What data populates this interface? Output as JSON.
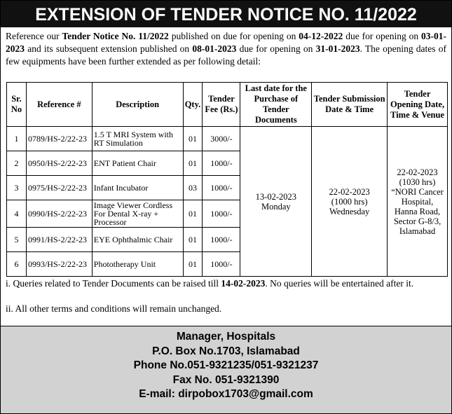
{
  "header": {
    "title": "EXTENSION OF TENDER NOTICE NO. 11/2022"
  },
  "intro": [
    "Reference our ",
    "Tender Notice No. 11/2022",
    " published on due for opening on ",
    "04-12-2022",
    " due for opening on ",
    "03-01-2023",
    " and its subsequent extension published on ",
    "08-01-2023",
    " due for opening on ",
    "31-01-2023",
    ". The opening dates of few equipments have been further extended as per following detail:"
  ],
  "table": {
    "headers": [
      "Sr. No",
      "Reference #",
      "Description",
      "Qty.",
      "Tender Fee (Rs.)",
      "Last date for the Purchase of Tender Documents",
      "Tender Submission Date & Time",
      "Tender Opening Date, Time & Venue"
    ],
    "rows": [
      [
        "1",
        "0789/HS-2/22-23",
        "1.5 T MRI System with RT Simulation",
        "01",
        "3000/-"
      ],
      [
        "2",
        "0950/HS-2/22-23",
        "ENT Patient Chair",
        "01",
        "1000/-"
      ],
      [
        "3",
        "0975/HS-2/22-23",
        "Infant Incubator",
        "03",
        "1000/-"
      ],
      [
        "4",
        "0990/HS-2/22-23",
        "Image Viewer Cordless For Dental X-ray + Processor",
        "01",
        "1000/-"
      ],
      [
        "5",
        "0991/HS-2/22-23",
        "EYE Ophthalmic Chair",
        "01",
        "1000/-"
      ],
      [
        "6",
        "0993/HS-2/22-23",
        "Phototherapy Unit",
        "01",
        "1000/-"
      ]
    ],
    "last_date": [
      "13-02-2023",
      "Monday"
    ],
    "submission": [
      "22-02-2023",
      "(1000 hrs)",
      "Wednesday"
    ],
    "opening": [
      "22-02-2023",
      "(1030 hrs)",
      "“NORI Cancer Hospital, Hanna Road, Sector G-8/3, Islamabad"
    ]
  },
  "notes": [
    [
      "i. Queries related to Tender Documents can be raised till ",
      "14-02-2023",
      ". No queries will be entertained after it."
    ],
    [
      "ii. All other terms and conditions will remain unchanged."
    ]
  ],
  "footer": [
    "Manager, Hospitals",
    "P.O. Box No.1703, Islamabad",
    "Phone No.051-9321235/051-9321237",
    "Fax No. 051-9321390",
    "E-mail: dirpobox1703@gmail.com"
  ]
}
